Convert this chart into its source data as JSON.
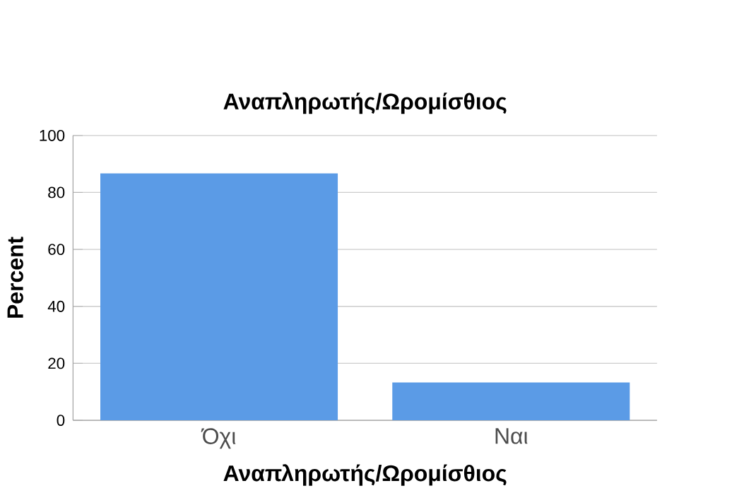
{
  "chart_data": {
    "type": "bar",
    "title": "Αναπληρωτής/Ωρομίσθιος",
    "xlabel": "Αναπληρωτής/Ωρομίσθιος",
    "ylabel": "Percent",
    "categories": [
      "Όχι",
      "Ναι"
    ],
    "values": [
      86.7,
      13.3
    ],
    "color": "#5b9be6",
    "ylim": [
      0,
      100
    ],
    "yticks": [
      0,
      20,
      40,
      60,
      80,
      100
    ],
    "grid": "y"
  }
}
